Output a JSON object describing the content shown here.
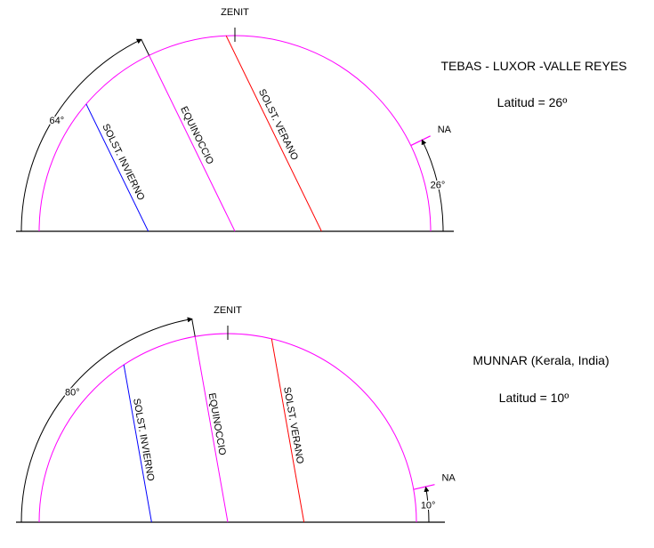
{
  "colors": {
    "circle": "#ff00ff",
    "winter": "#0000ff",
    "equinox": "#ff00ff",
    "summer": "#ff0000",
    "ground": "#000000"
  },
  "diagrams": [
    {
      "place": "TEBAS - LUXOR -VALLE REYES",
      "latitude_text": "Latitud = 26º",
      "latitude": 26,
      "zenith_label": "ZENIT",
      "north_label": "NA",
      "colatitude_label": "64°",
      "latitude_label": "26°",
      "winter_label": "SOLST. INVIERNO",
      "equinox_label": "EQUINOCCIO",
      "summer_label": "SOLST. VERANO"
    },
    {
      "place": "MUNNAR (Kerala, India)",
      "latitude_text": "Latitud = 10º",
      "latitude": 10,
      "zenith_label": "ZENIT",
      "north_label": "NA",
      "colatitude_label": "80°",
      "latitude_label": "10°",
      "winter_label": "SOLST. INVIERNO",
      "equinox_label": "EQUINOCCIO",
      "summer_label": "SOLST. VERANO"
    }
  ]
}
